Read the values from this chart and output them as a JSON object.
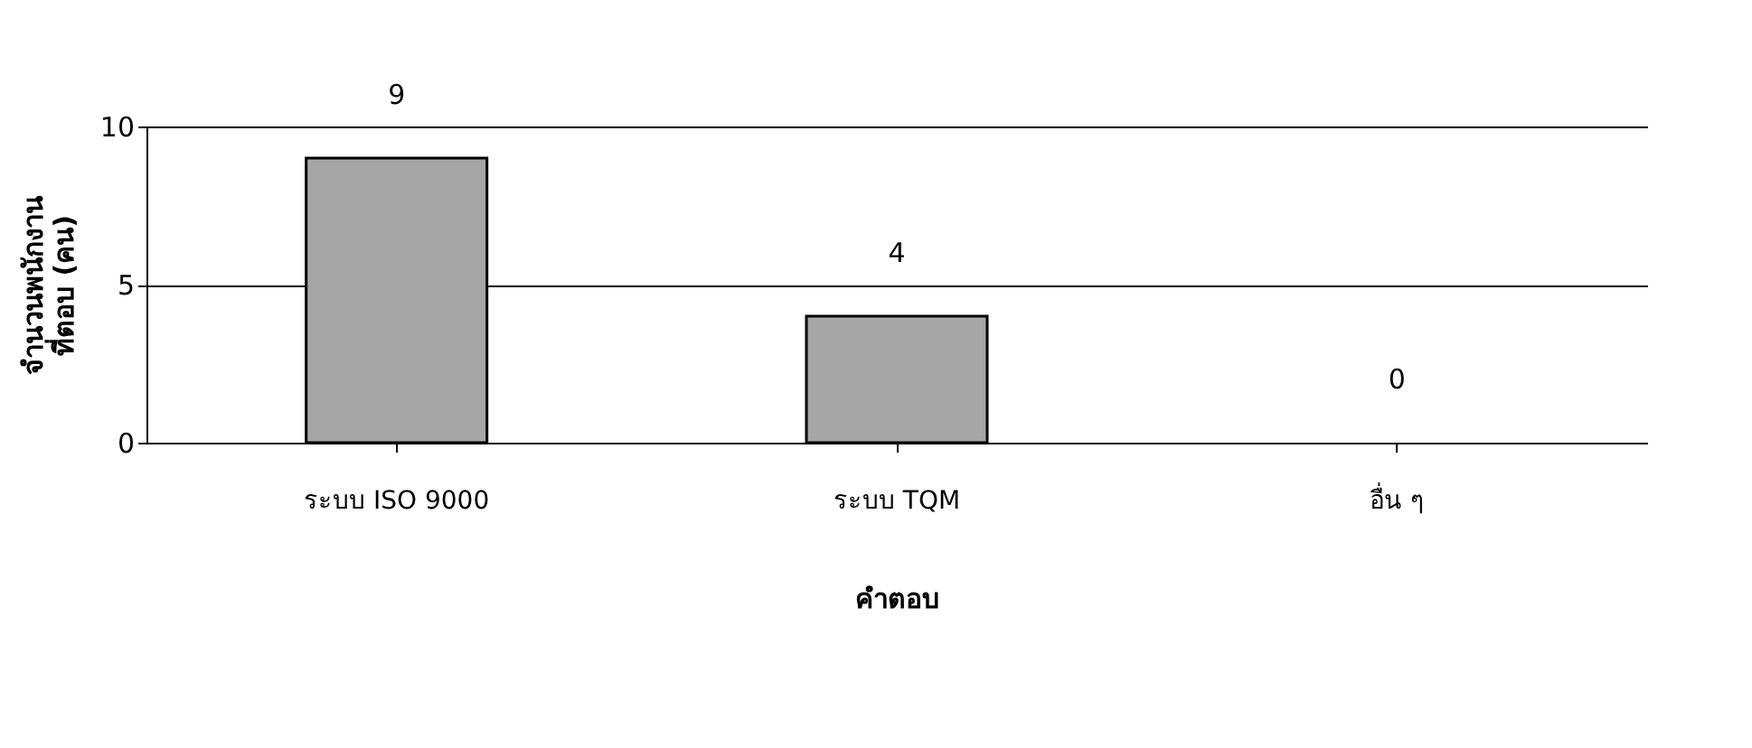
{
  "chart_data": {
    "type": "bar",
    "categories": [
      "ระบบ ISO 9000",
      "ระบบ TQM",
      "อื่น ๆ"
    ],
    "values": [
      9,
      4,
      0
    ],
    "color": "#a6a6a6",
    "ylim": [
      0,
      10
    ],
    "yticks": [
      0,
      5,
      10
    ],
    "grid": "y",
    "data_labels": true,
    "xlabel": "คำตอบ",
    "ylabel": "จำนวนพนักงาน\nที่ตอบ (คน)"
  }
}
